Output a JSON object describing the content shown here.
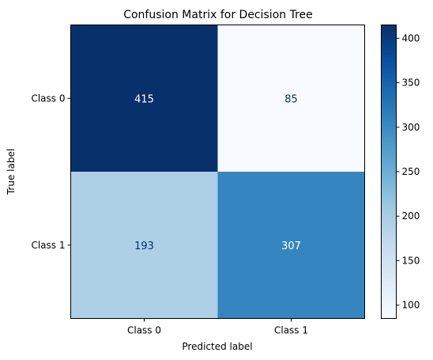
{
  "chart_data": {
    "type": "heatmap",
    "title": "Confusion Matrix for Decision Tree",
    "xlabel": "Predicted label",
    "ylabel": "True label",
    "x_categories": [
      "Class 0",
      "Class 1"
    ],
    "y_categories": [
      "Class 0",
      "Class 1"
    ],
    "values": [
      [
        415,
        85
      ],
      [
        193,
        307
      ]
    ],
    "colormap": "Blues",
    "color_range": [
      85,
      415
    ],
    "colorbar_ticks": [
      100,
      150,
      200,
      250,
      300,
      350,
      400
    ],
    "grid": false
  }
}
